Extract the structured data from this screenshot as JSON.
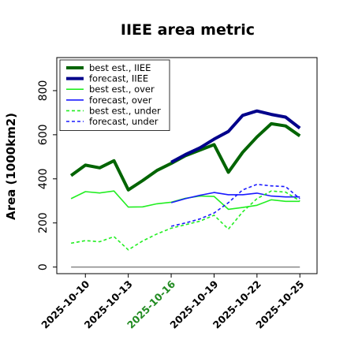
{
  "chart_data": {
    "type": "line",
    "title": "IIEE area metric",
    "ylabel": "Area (1000km2)",
    "xlabel": "",
    "ylim": [
      -30,
      950
    ],
    "yticks": [
      0,
      200,
      400,
      600,
      800
    ],
    "xlim": [
      8.0,
      26.2
    ],
    "xticks": [
      10,
      13,
      16,
      19,
      22,
      25
    ],
    "xtick_labels": [
      "2025-10-10",
      "2025-10-13",
      "2025-10-16",
      "2025-10-19",
      "2025-10-22",
      "2025-10-25"
    ],
    "xtick_colors": [
      "#000000",
      "#000000",
      "#228b22",
      "#000000",
      "#000000",
      "#000000"
    ],
    "legend_position": "upper left",
    "baseline": 0,
    "series": [
      {
        "name": "best est., IIEE",
        "color": "#006400",
        "width": 4,
        "dash": "",
        "x": [
          9,
          10,
          11,
          12,
          13,
          14,
          15,
          16,
          17,
          18,
          19,
          20,
          21,
          22,
          23,
          24,
          25
        ],
        "y": [
          415,
          462,
          450,
          482,
          350,
          392,
          438,
          470,
          505,
          530,
          555,
          430,
          520,
          590,
          650,
          640,
          595
        ]
      },
      {
        "name": "forecast, IIEE",
        "color": "#00008b",
        "width": 4,
        "dash": "",
        "x": [
          16,
          17,
          18,
          19,
          20,
          21,
          22,
          23,
          24,
          25
        ],
        "y": [
          475,
          510,
          540,
          580,
          615,
          688,
          708,
          692,
          680,
          630
        ]
      },
      {
        "name": "best est., over",
        "color": "#22ee22",
        "width": 1.6,
        "dash": "",
        "x": [
          9,
          10,
          11,
          12,
          13,
          14,
          15,
          16,
          17,
          18,
          19,
          20,
          21,
          22,
          23,
          24,
          25
        ],
        "y": [
          310,
          342,
          336,
          345,
          272,
          273,
          287,
          294,
          312,
          322,
          320,
          262,
          270,
          280,
          305,
          298,
          298
        ]
      },
      {
        "name": "forecast, over",
        "color": "#1a1aff",
        "width": 1.6,
        "dash": "",
        "x": [
          16,
          17,
          18,
          19,
          20,
          21,
          22,
          23,
          24,
          25
        ],
        "y": [
          292,
          310,
          325,
          338,
          328,
          328,
          335,
          322,
          318,
          318
        ]
      },
      {
        "name": "best est., under",
        "color": "#22ee22",
        "width": 1.6,
        "dash": "4,3",
        "x": [
          9,
          10,
          11,
          12,
          13,
          14,
          15,
          16,
          17,
          18,
          19,
          20,
          21,
          22,
          23,
          24,
          25
        ],
        "y": [
          108,
          120,
          115,
          138,
          78,
          118,
          150,
          176,
          192,
          208,
          235,
          172,
          250,
          310,
          345,
          340,
          300
        ]
      },
      {
        "name": "forecast, under",
        "color": "#1a1aff",
        "width": 1.6,
        "dash": "4,3",
        "x": [
          16,
          17,
          18,
          19,
          20,
          21,
          22,
          23,
          24,
          25
        ],
        "y": [
          185,
          200,
          218,
          245,
          292,
          350,
          375,
          368,
          365,
          310
        ]
      }
    ]
  }
}
